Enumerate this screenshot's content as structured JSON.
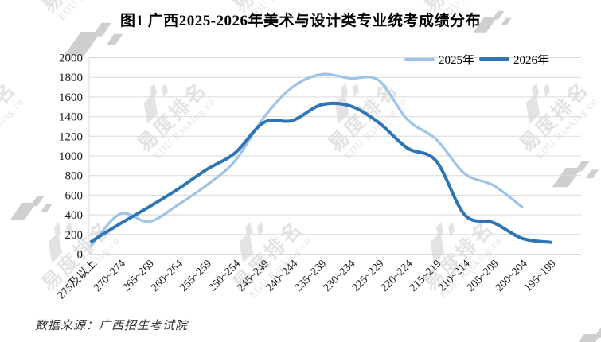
{
  "title": "图1 广西2025-2026年美术与设计类专业统考成绩分布",
  "source_note": "数据来源：广西招生考试院",
  "watermark": {
    "cn": "易度排名",
    "en": "EDU Ranking.cn"
  },
  "colors": {
    "series_2025": "#9DC3E6",
    "series_2026": "#2E75B6",
    "gridline": "#D9D9D9",
    "axis_text": "#1a1a1a",
    "title_text": "#000000",
    "source_text": "#333333",
    "watermark": "#e3e3e3"
  },
  "chart_data": {
    "type": "line",
    "title": "图1 广西2025-2026年美术与设计类专业统考成绩分布",
    "categories": [
      "275及以上",
      "270~274",
      "265~269",
      "260~264",
      "255~259",
      "250~254",
      "245~249",
      "240~244",
      "235~239",
      "230~234",
      "225~229",
      "220~224",
      "215~219",
      "210~214",
      "205~209",
      "200~204",
      "195~199"
    ],
    "series": [
      {
        "name": "2025年",
        "color": "#9DC3E6",
        "values": [
          90,
          410,
          330,
          500,
          700,
          950,
          1390,
          1700,
          1830,
          1790,
          1770,
          1370,
          1170,
          820,
          700,
          480,
          null
        ]
      },
      {
        "name": "2026年",
        "color": "#2E75B6",
        "values": [
          130,
          310,
          480,
          660,
          860,
          1030,
          1340,
          1360,
          1520,
          1510,
          1340,
          1080,
          950,
          400,
          320,
          160,
          120
        ]
      }
    ],
    "xlabel": "",
    "ylabel": "",
    "ylim": [
      0,
      2000
    ],
    "ytick_step": 200,
    "grid": "horizontal",
    "legend_position": "top-right"
  }
}
